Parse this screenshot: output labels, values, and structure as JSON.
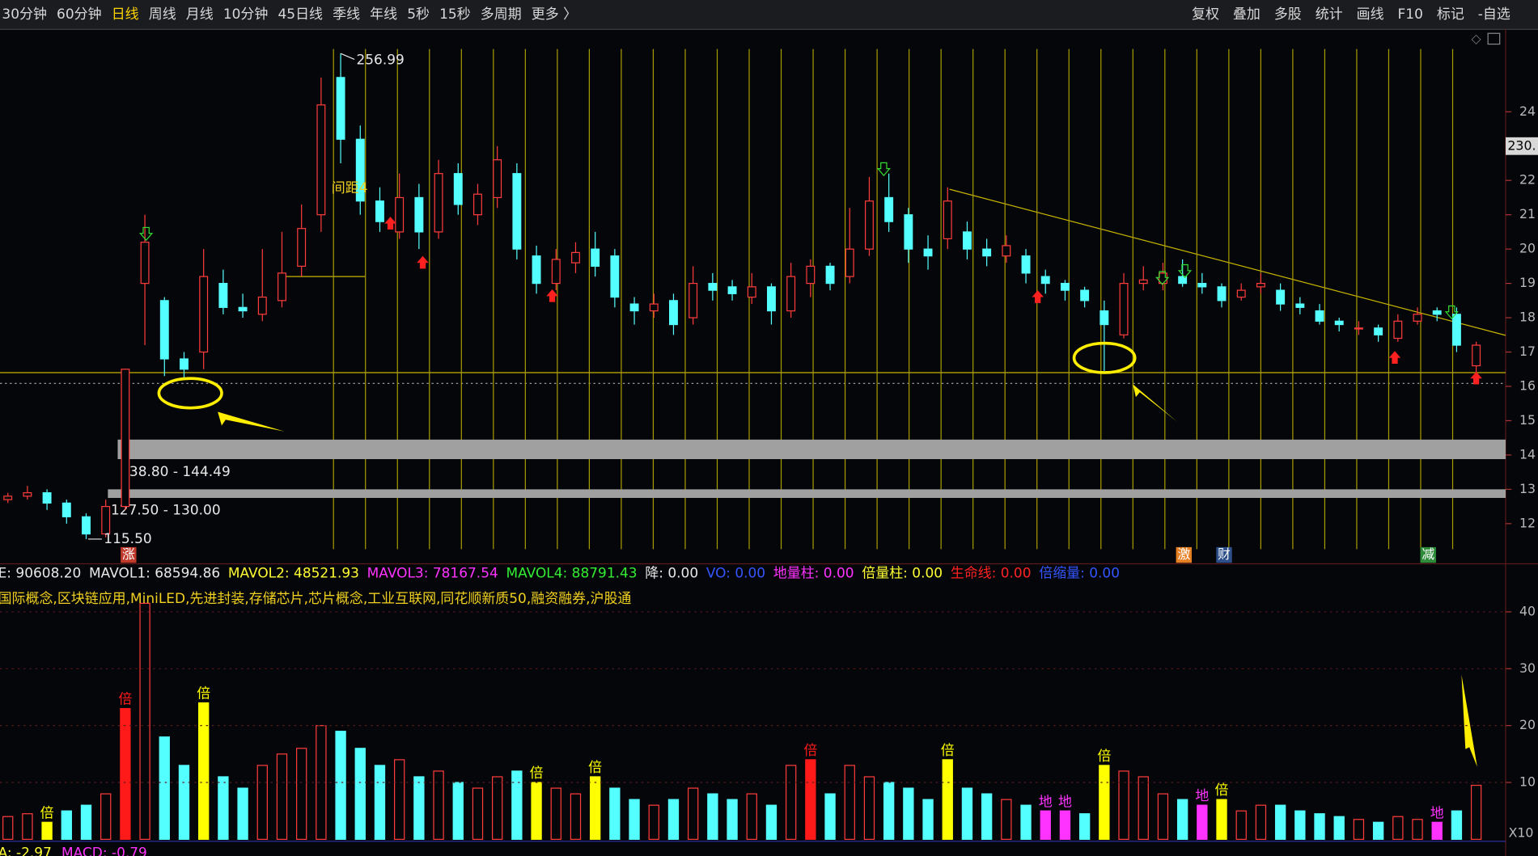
{
  "toolbar": {
    "left": [
      "30分钟",
      "60分钟",
      "日线",
      "周线",
      "月线",
      "10分钟",
      "45日线",
      "季线",
      "年线",
      "5秒",
      "15秒",
      "多周期",
      "更多 〉"
    ],
    "active": 2,
    "active_color": "#ffd400",
    "right": [
      "复权",
      "叠加",
      "多股",
      "统计",
      "画线",
      "F10",
      "标记",
      "-自选"
    ]
  },
  "chart_data": {
    "type": "candlestick",
    "up_color": "#ff3c3c",
    "down_color": "#54ffff",
    "open": [
      127,
      128,
      129,
      126,
      122,
      117,
      125,
      190,
      185,
      168,
      170,
      190,
      183,
      181,
      185,
      195,
      210,
      250,
      232,
      214,
      205,
      215,
      205,
      222,
      210,
      215,
      222,
      198,
      190,
      196,
      200,
      198,
      184,
      182,
      185,
      180,
      190,
      189,
      186,
      189,
      182,
      190,
      195,
      192,
      200,
      215,
      210,
      200,
      203,
      205,
      200,
      198,
      198,
      192,
      190,
      188,
      182,
      175,
      190,
      190,
      192,
      190,
      189,
      186,
      189,
      188,
      184,
      182,
      179,
      177,
      177,
      174,
      179,
      182,
      181,
      166
    ],
    "high": [
      129,
      131,
      130,
      127,
      123,
      127,
      165,
      210,
      186,
      170,
      200,
      194,
      187,
      200,
      205,
      213,
      250,
      256.99,
      236,
      218,
      222,
      219,
      226,
      225,
      219,
      230,
      225,
      201,
      200,
      202,
      205,
      200,
      186,
      187,
      187,
      195,
      193,
      191,
      193,
      190,
      196,
      197,
      196,
      212,
      221,
      222,
      212,
      204,
      218,
      208,
      203,
      204,
      200,
      194,
      191,
      189,
      185,
      193,
      195,
      196,
      197,
      193,
      190,
      190,
      193,
      190,
      186,
      184,
      180,
      179,
      178,
      181,
      183,
      183,
      183,
      173
    ],
    "low": [
      126,
      127,
      124,
      120,
      115.5,
      116,
      124,
      172,
      163,
      162,
      165,
      181,
      180,
      179,
      183,
      192,
      205,
      225,
      210,
      205,
      203,
      200,
      203,
      210,
      207,
      212,
      197,
      187,
      188,
      193,
      192,
      183,
      178,
      180,
      175,
      178,
      185,
      185,
      184,
      178,
      180,
      186,
      188,
      190,
      198,
      205,
      196,
      194,
      200,
      197,
      195,
      196,
      190,
      187,
      185,
      183,
      164.5,
      174,
      188,
      188,
      189,
      187,
      183,
      185,
      187,
      182,
      181,
      178,
      176,
      175,
      173,
      173,
      178,
      179,
      170,
      164
    ],
    "close": [
      128,
      129,
      126,
      122,
      117,
      125,
      165,
      202,
      168,
      165,
      192,
      183,
      182,
      186,
      193,
      206,
      242,
      232,
      214,
      208,
      215,
      205,
      222,
      213,
      216,
      226,
      200,
      190,
      197,
      199,
      195,
      186,
      182,
      184,
      178,
      190,
      188,
      187,
      189,
      182,
      192,
      195,
      190,
      200,
      214,
      208,
      200,
      198,
      214,
      200,
      198,
      201,
      193,
      190,
      188,
      185,
      178,
      190,
      191,
      193,
      190,
      189,
      185,
      188,
      190,
      184,
      183,
      179,
      178,
      177,
      175,
      179,
      181,
      181,
      172,
      172
    ],
    "volume": [
      40000,
      45000,
      30000,
      50000,
      60000,
      80000,
      230000,
      415000,
      180000,
      130000,
      240000,
      110000,
      90000,
      130000,
      150000,
      160000,
      200000,
      190000,
      160000,
      130000,
      140000,
      110000,
      120000,
      100000,
      90000,
      110000,
      120000,
      100000,
      90000,
      80000,
      110000,
      90000,
      70000,
      60000,
      70000,
      90000,
      80000,
      70000,
      80000,
      60000,
      130000,
      140000,
      80000,
      130000,
      110000,
      100000,
      90000,
      70000,
      140000,
      90000,
      80000,
      70000,
      60000,
      50000,
      50000,
      45000,
      130000,
      120000,
      110000,
      80000,
      70000,
      60000,
      70000,
      50000,
      60000,
      60000,
      50000,
      45000,
      40000,
      35000,
      30000,
      40000,
      35000,
      30000,
      50000,
      95000
    ],
    "volume_marks": [
      {
        "index": 2,
        "color": "#ffff00",
        "label": "倍"
      },
      {
        "index": 6,
        "color": "#ff1a1a",
        "label": "倍"
      },
      {
        "index": 10,
        "color": "#ffff00",
        "label": "倍"
      },
      {
        "index": 27,
        "color": "#ffff00",
        "label": "倍"
      },
      {
        "index": 30,
        "color": "#ffff00",
        "label": "倍"
      },
      {
        "index": 41,
        "color": "#ff1a1a",
        "label": "倍"
      },
      {
        "index": 48,
        "color": "#ffff00",
        "label": "倍"
      },
      {
        "index": 56,
        "color": "#ffff00",
        "label": "倍"
      },
      {
        "index": 62,
        "color": "#ffff00",
        "label": "倍"
      },
      {
        "index": 53,
        "color": "#ff33ff",
        "label": "地"
      },
      {
        "index": 54,
        "color": "#ff33ff",
        "label": "地"
      },
      {
        "index": 61,
        "color": "#ff33ff",
        "label": "地"
      },
      {
        "index": 73,
        "color": "#ff33ff",
        "label": "地"
      }
    ],
    "ylim": [
      108.3,
      264
    ],
    "yticks": [
      {
        "value": 240,
        "label": "24"
      },
      {
        "value": 220,
        "label": "22"
      },
      {
        "value": 210,
        "label": "21"
      },
      {
        "value": 200,
        "label": "20"
      },
      {
        "value": 190,
        "label": "19"
      },
      {
        "value": 180,
        "label": "18"
      },
      {
        "value": 170,
        "label": "17"
      },
      {
        "value": 160,
        "label": "16"
      },
      {
        "value": 150,
        "label": "15"
      },
      {
        "value": 140,
        "label": "14"
      },
      {
        "value": 130,
        "label": "13"
      },
      {
        "value": 120,
        "label": "12"
      }
    ],
    "current_price": {
      "value": 230,
      "label": "230."
    },
    "vol_ylim": [
      0,
      415500
    ],
    "vol_yticks": [
      {
        "value": 400000,
        "label": "40"
      },
      {
        "value": 300000,
        "label": "30"
      },
      {
        "value": 200000,
        "label": "20"
      },
      {
        "value": 100000,
        "label": "10"
      }
    ],
    "vol_scale_label": "X10",
    "high_label": 256.99,
    "low_label": {
      "value": 115.5,
      "label": "115.50"
    },
    "zones": [
      {
        "low": 138.8,
        "high": 144.49,
        "label": "138.80 - 144.49"
      },
      {
        "low": 127.5,
        "high": 130,
        "label": "127.50 - 130.00"
      }
    ],
    "spacing_label": "间距4",
    "event_markers": [
      {
        "text": "涨",
        "color": "#c0392b"
      },
      {
        "text": "激",
        "color": "#e67e22"
      },
      {
        "text": "财",
        "color": "#2c4f8a"
      },
      {
        "text": "减",
        "color": "#2e8b3a"
      }
    ]
  },
  "indicators": [
    {
      "text": "E: 90608.20",
      "color": "#e8e8e8"
    },
    {
      "text": "MAVOL1: 68594.86",
      "color": "#e8e8e8"
    },
    {
      "text": "MAVOL2: 48521.93",
      "color": "#ffff33"
    },
    {
      "text": "MAVOL3: 78167.54",
      "color": "#ff33ff"
    },
    {
      "text": "MAVOL4: 88791.43",
      "color": "#33ee33"
    },
    {
      "text": "降: 0.00",
      "color": "#e8e8e8"
    },
    {
      "text": "VO: 0.00",
      "color": "#3355ff"
    },
    {
      "text": "地量柱: 0.00",
      "color": "#ff33ff"
    },
    {
      "text": "倍量柱: 0.00",
      "color": "#ffff33"
    },
    {
      "text": "生命线: 0.00",
      "color": "#ff2222"
    },
    {
      "text": "倍缩量: 0.00",
      "color": "#3355ff"
    }
  ],
  "concepts": "国际概念,区块链应用,MiniLED,先进封装,存储芯片,芯片概念,工业互联网,同花顺新质50,融资融券,沪股通",
  "macd": [
    {
      "text": "A: -2.97",
      "color": "#ffff33"
    },
    {
      "text": "MACD: -0.79",
      "color": "#ff33ff"
    }
  ]
}
